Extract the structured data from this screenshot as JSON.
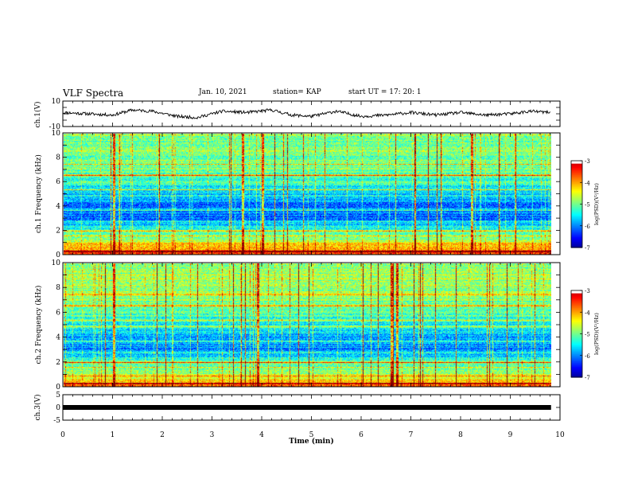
{
  "header": {
    "title": "VLF Spectra",
    "date": "Jan. 10, 2021",
    "station": "station= KAP",
    "start": "start UT = 17: 20: 1"
  },
  "colors": {
    "spectrum_low": "#00008b",
    "spectrum_mid": "#00ff00",
    "spectrum_high": "#ff0000",
    "trace": "#000000"
  },
  "chart_data": [
    {
      "type": "line",
      "name": "ch.1 waveform",
      "ylabel": "ch.1(V)",
      "ylim": [
        -10,
        10
      ],
      "yticks": [
        "10",
        "-10"
      ],
      "xlim": [
        0,
        10
      ],
      "x": [
        0,
        0.5,
        1,
        1.4,
        1.8,
        2.3,
        2.7,
        3.2,
        3.7,
        4.2,
        4.6,
        5.0,
        5.5,
        6.0,
        6.5,
        7.0,
        7.5,
        8.0,
        8.5,
        9.0,
        9.4,
        9.8
      ],
      "y": [
        1,
        0,
        -1,
        3,
        2,
        -2,
        -3,
        2,
        1,
        3,
        -1,
        -2,
        2,
        -2,
        -1,
        1,
        -1,
        1,
        -1,
        0,
        2,
        1
      ]
    },
    {
      "type": "heatmap",
      "name": "ch.1 spectrogram",
      "ylabel": "ch.1 Frequency (kHz)",
      "xlim": [
        0,
        10
      ],
      "ylim": [
        0,
        10
      ],
      "yticks": [
        "0",
        "2",
        "4",
        "6",
        "8",
        "10"
      ],
      "colorbar": {
        "label": "log(PSD)(V²/Hz)",
        "range": [
          -7,
          -3
        ],
        "ticks": [
          "-3",
          "-4",
          "-5",
          "-6",
          "-7"
        ]
      },
      "band_profile": {
        "freq": [
          0,
          1,
          2,
          3,
          4,
          5,
          6,
          7,
          8,
          9,
          10
        ],
        "log_psd": [
          -3.6,
          -4.6,
          -5.3,
          -6.1,
          -6.0,
          -5.7,
          -5.3,
          -5.1,
          -5.0,
          -5.0,
          -5.0
        ]
      }
    },
    {
      "type": "heatmap",
      "name": "ch.2 spectrogram",
      "ylabel": "ch.2 Frequency (kHz)",
      "xlim": [
        0,
        10
      ],
      "ylim": [
        0,
        10
      ],
      "yticks": [
        "0",
        "2",
        "4",
        "6",
        "8",
        "10"
      ],
      "colorbar": {
        "label": "log(PSD)(V²/Hz)",
        "range": [
          -7,
          -3
        ],
        "ticks": [
          "-3",
          "-4",
          "-5",
          "-6",
          "-7"
        ]
      },
      "band_profile": {
        "freq": [
          0,
          1,
          2,
          3,
          4,
          5,
          6,
          7,
          8,
          9,
          10
        ],
        "log_psd": [
          -3.8,
          -4.7,
          -5.2,
          -6.0,
          -5.8,
          -5.5,
          -5.2,
          -5.0,
          -4.9,
          -4.9,
          -4.9
        ]
      }
    },
    {
      "type": "line",
      "name": "ch.3 waveform",
      "ylabel": "ch.3(V)",
      "ylim": [
        -5,
        5
      ],
      "yticks": [
        "5",
        "0",
        "-5"
      ],
      "xlim": [
        0,
        10
      ],
      "x": [
        0,
        9.82
      ],
      "y": [
        0,
        0
      ]
    }
  ],
  "xaxis": {
    "label": "Time (min)",
    "ticks": [
      "0",
      "1",
      "2",
      "3",
      "4",
      "5",
      "6",
      "7",
      "8",
      "9",
      "10"
    ]
  }
}
